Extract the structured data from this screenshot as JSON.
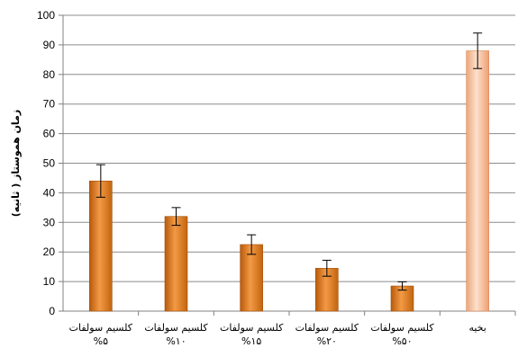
{
  "chart_data": {
    "type": "bar",
    "categories": [
      [
        "کلسیم سولفات",
        "%۵"
      ],
      [
        "کلسیم سولفات",
        "%۱۰"
      ],
      [
        "کلسیم سولفات",
        "%۱۵"
      ],
      [
        "کلسیم سولفات",
        "%۲۰"
      ],
      [
        "کلسیم سولفات",
        "%۵۰"
      ],
      [
        "بخیه"
      ]
    ],
    "values": [
      44,
      32,
      22.5,
      14.5,
      8.5,
      88
    ],
    "error": [
      5.5,
      3,
      3.3,
      2.7,
      1.4,
      6
    ],
    "ylabel": "زمان هموستاز ( ثانیه)",
    "ylim": [
      0,
      100
    ],
    "yticks": [
      0,
      10,
      20,
      30,
      40,
      50,
      60,
      70,
      80,
      90,
      100
    ],
    "grid": true,
    "colors": {
      "bar": "#e07a1a",
      "bar_light": "#f6b27a",
      "highlight": "#f7b88c",
      "highlight_light": "#fde0cc",
      "grid": "#8c8c8c",
      "axis": "#808080"
    }
  }
}
